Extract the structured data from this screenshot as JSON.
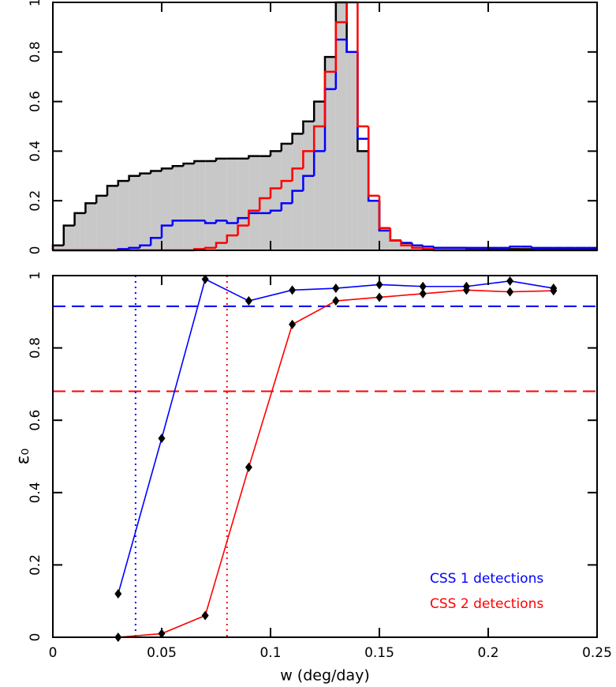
{
  "chart_data": [
    {
      "type": "histogram",
      "bins": [
        0,
        0.005,
        0.01,
        0.015,
        0.02,
        0.025,
        0.03,
        0.035,
        0.04,
        0.045,
        0.05,
        0.055,
        0.06,
        0.065,
        0.07,
        0.075,
        0.08,
        0.085,
        0.09,
        0.095,
        0.1,
        0.105,
        0.11,
        0.115,
        0.12,
        0.125,
        0.13,
        0.135,
        0.14,
        0.145,
        0.15,
        0.155,
        0.16,
        0.165,
        0.17,
        0.175,
        0.18,
        0.185,
        0.19,
        0.195,
        0.2,
        0.205,
        0.21,
        0.215,
        0.22,
        0.225,
        0.23,
        0.235,
        0.24,
        0.245,
        0.25
      ],
      "series": [
        {
          "color": "#000000",
          "fill": "#c8c8c8",
          "values": [
            0.02,
            0.1,
            0.15,
            0.19,
            0.22,
            0.26,
            0.28,
            0.3,
            0.31,
            0.32,
            0.33,
            0.34,
            0.35,
            0.36,
            0.36,
            0.37,
            0.37,
            0.37,
            0.38,
            0.38,
            0.4,
            0.43,
            0.47,
            0.52,
            0.6,
            0.78,
            1.0,
            0.8,
            0.4,
            0.2,
            0.08,
            0.04,
            0.03,
            0.02,
            0.015,
            0.01,
            0.01,
            0.01,
            0.008,
            0.008,
            0.006,
            0.006,
            0.005,
            0.005,
            0.005,
            0.005,
            0.005,
            0.005,
            0.005,
            0.005
          ]
        },
        {
          "color": "#0000ff",
          "values": [
            0,
            0,
            0,
            0,
            0,
            0,
            0.005,
            0.01,
            0.02,
            0.05,
            0.1,
            0.12,
            0.12,
            0.12,
            0.11,
            0.12,
            0.11,
            0.13,
            0.15,
            0.15,
            0.16,
            0.19,
            0.24,
            0.3,
            0.4,
            0.65,
            0.85,
            0.8,
            0.45,
            0.2,
            0.08,
            0.04,
            0.03,
            0.02,
            0.015,
            0.01,
            0.01,
            0.01,
            0.01,
            0.01,
            0.01,
            0.01,
            0.015,
            0.015,
            0.01,
            0.01,
            0.01,
            0.01,
            0.01,
            0.01
          ]
        },
        {
          "color": "#ff0000",
          "values": [
            0,
            0,
            0,
            0,
            0,
            0,
            0,
            0,
            0,
            0,
            0,
            0,
            0,
            0.005,
            0.01,
            0.03,
            0.06,
            0.1,
            0.16,
            0.21,
            0.25,
            0.28,
            0.33,
            0.4,
            0.5,
            0.72,
            0.92,
            1.0,
            0.5,
            0.22,
            0.09,
            0.04,
            0.02,
            0.01,
            0.005,
            0,
            0,
            0,
            0,
            0,
            0,
            0,
            0,
            0,
            0,
            0,
            0,
            0,
            0,
            0
          ]
        }
      ],
      "xlim": [
        0,
        0.25
      ],
      "xticks": [
        0,
        0.05,
        0.1,
        0.15,
        0.2,
        0.25
      ],
      "ylim": [
        0,
        1
      ],
      "yticks": [
        0,
        0.2,
        0.4,
        0.6,
        0.8,
        1
      ]
    },
    {
      "type": "line",
      "xlabel": "w (deg/day)",
      "ylabel": "ε₀",
      "x": [
        0.03,
        0.05,
        0.07,
        0.09,
        0.11,
        0.13,
        0.15,
        0.17,
        0.19,
        0.21,
        0.23
      ],
      "series": [
        {
          "name": "CSS 1 detections",
          "color": "#0000ff",
          "values": [
            0.12,
            0.55,
            0.99,
            0.93,
            0.96,
            0.965,
            0.975,
            0.97,
            0.97,
            0.985,
            0.965
          ]
        },
        {
          "name": "CSS 2 detections",
          "color": "#ff0000",
          "values": [
            0,
            0.01,
            0.06,
            0.47,
            0.865,
            0.93,
            0.94,
            0.95,
            0.96,
            0.955,
            0.958
          ]
        }
      ],
      "hlines": [
        {
          "y": 0.915,
          "color": "#0000ff"
        },
        {
          "y": 0.68,
          "color": "#ff0000"
        }
      ],
      "vlines": [
        {
          "x": 0.038,
          "color": "#0000ff"
        },
        {
          "x": 0.08,
          "color": "#ff0000"
        }
      ],
      "legend": "lower right",
      "xlim": [
        0,
        0.25
      ],
      "xticks": [
        0,
        0.05,
        0.1,
        0.15,
        0.2,
        0.25
      ],
      "ylim": [
        0,
        1
      ],
      "yticks": [
        0,
        0.2,
        0.4,
        0.6,
        0.8,
        1
      ]
    }
  ]
}
